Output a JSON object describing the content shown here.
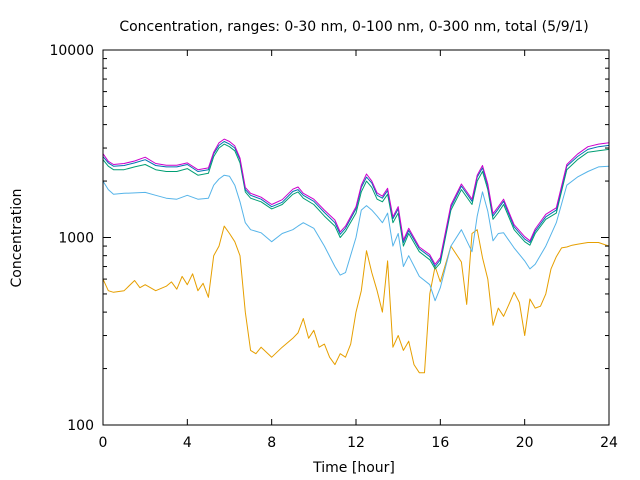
{
  "chart_data": {
    "type": "line",
    "title": "Concentration, ranges: 0-30 nm, 0-100 nm, 0-300 nm, total (5/9/1)",
    "xlabel": "Time [hour]",
    "ylabel": "Concentration",
    "xlim": [
      0,
      24
    ],
    "ylim": [
      100,
      10000
    ],
    "yscale": "log",
    "grid": false,
    "legend": "none",
    "xticks": [
      0,
      4,
      8,
      12,
      16,
      20,
      24
    ],
    "xtick_labels": [
      "0",
      "4",
      "8",
      "12",
      "16",
      "20",
      "24"
    ],
    "yticks": [
      100,
      1000,
      10000
    ],
    "ytick_labels": [
      "100",
      "1000",
      "10000"
    ],
    "series": [
      {
        "color": "#e69f00",
        "x": [
          0,
          0.25,
          0.5,
          1,
          1.5,
          1.75,
          2,
          2.5,
          3,
          3.25,
          3.5,
          3.75,
          4,
          4.25,
          4.5,
          4.75,
          5,
          5.25,
          5.5,
          5.75,
          6,
          6.25,
          6.5,
          6.75,
          7,
          7.25,
          7.5,
          8,
          8.5,
          9,
          9.25,
          9.5,
          9.75,
          10,
          10.25,
          10.5,
          10.75,
          11,
          11.25,
          11.5,
          11.75,
          12,
          12.25,
          12.5,
          12.75,
          13,
          13.25,
          13.5,
          13.75,
          14,
          14.25,
          14.5,
          14.75,
          15,
          15.25,
          15.5,
          15.75,
          16,
          16.5,
          17,
          17.25,
          17.5,
          17.75,
          18,
          18.25,
          18.5,
          18.75,
          19,
          19.25,
          19.5,
          19.75,
          20,
          20.25,
          20.5,
          20.75,
          21,
          21.25,
          21.5,
          21.75,
          22,
          22.25,
          22.5,
          23,
          23.5,
          24
        ],
        "y": [
          600,
          520,
          510,
          520,
          590,
          540,
          560,
          520,
          550,
          580,
          530,
          620,
          560,
          640,
          520,
          570,
          480,
          800,
          900,
          1150,
          1050,
          950,
          800,
          400,
          250,
          240,
          260,
          230,
          260,
          290,
          310,
          370,
          290,
          320,
          260,
          270,
          230,
          210,
          240,
          230,
          270,
          400,
          520,
          850,
          650,
          520,
          400,
          750,
          260,
          300,
          250,
          280,
          210,
          190,
          190,
          500,
          700,
          580,
          900,
          740,
          440,
          1050,
          1100,
          780,
          600,
          340,
          420,
          380,
          440,
          510,
          450,
          300,
          470,
          420,
          430,
          500,
          680,
          790,
          880,
          890,
          910,
          920,
          940,
          940,
          900
        ]
      },
      {
        "color": "#56b4e9",
        "x": [
          0,
          0.25,
          0.5,
          1,
          1.5,
          2,
          2.5,
          3,
          3.5,
          4,
          4.5,
          5,
          5.25,
          5.5,
          5.75,
          6,
          6.25,
          6.5,
          6.75,
          7,
          7.5,
          8,
          8.5,
          9,
          9.25,
          9.5,
          10,
          10.5,
          11,
          11.25,
          11.5,
          12,
          12.25,
          12.5,
          12.75,
          13,
          13.25,
          13.5,
          13.75,
          14,
          14.25,
          14.5,
          15,
          15.5,
          15.75,
          16,
          16.5,
          17,
          17.5,
          17.75,
          18,
          18.25,
          18.5,
          18.75,
          19,
          19.5,
          20,
          20.25,
          20.5,
          21,
          21.5,
          22,
          22.5,
          23,
          23.5,
          24
        ],
        "y": [
          2000,
          1800,
          1700,
          1720,
          1730,
          1740,
          1680,
          1620,
          1600,
          1680,
          1600,
          1620,
          1900,
          2050,
          2150,
          2120,
          1900,
          1550,
          1200,
          1100,
          1060,
          950,
          1050,
          1100,
          1150,
          1200,
          1120,
          900,
          700,
          630,
          650,
          1000,
          1400,
          1480,
          1400,
          1300,
          1200,
          1350,
          900,
          1050,
          700,
          800,
          620,
          560,
          460,
          540,
          900,
          1100,
          840,
          1300,
          1750,
          1380,
          960,
          1050,
          1060,
          880,
          750,
          680,
          720,
          900,
          1200,
          1900,
          2100,
          2250,
          2380,
          2400
        ]
      },
      {
        "color": "#009e73",
        "x": [
          0,
          0.25,
          0.5,
          1,
          1.5,
          2,
          2.5,
          3,
          3.5,
          4,
          4.5,
          5,
          5.25,
          5.5,
          5.75,
          6,
          6.25,
          6.5,
          6.75,
          7,
          7.5,
          8,
          8.5,
          9,
          9.25,
          9.5,
          10,
          10.5,
          11,
          11.25,
          11.5,
          12,
          12.25,
          12.5,
          12.75,
          13,
          13.25,
          13.5,
          13.75,
          14,
          14.25,
          14.5,
          15,
          15.5,
          15.75,
          16,
          16.5,
          17,
          17.5,
          17.75,
          18,
          18.25,
          18.5,
          18.75,
          19,
          19.5,
          20,
          20.25,
          20.5,
          21,
          21.5,
          22,
          22.5,
          23,
          23.5,
          24
        ],
        "y": [
          2600,
          2400,
          2300,
          2300,
          2380,
          2450,
          2300,
          2250,
          2250,
          2330,
          2150,
          2200,
          2700,
          3000,
          3150,
          3050,
          2900,
          2500,
          1750,
          1620,
          1550,
          1420,
          1500,
          1700,
          1750,
          1620,
          1500,
          1300,
          1150,
          1000,
          1080,
          1350,
          1750,
          2000,
          1850,
          1600,
          1550,
          1700,
          1200,
          1350,
          900,
          1050,
          840,
          760,
          680,
          730,
          1400,
          1800,
          1500,
          2000,
          2250,
          1800,
          1250,
          1360,
          1500,
          1100,
          950,
          910,
          1050,
          1250,
          1350,
          2300,
          2600,
          2850,
          2900,
          2950
        ]
      },
      {
        "color": "#0072b2",
        "x": [
          0,
          0.25,
          0.5,
          1,
          1.5,
          2,
          2.5,
          3,
          3.5,
          4,
          4.5,
          5,
          5.25,
          5.5,
          5.75,
          6,
          6.25,
          6.5,
          6.75,
          7,
          7.5,
          8,
          8.5,
          9,
          9.25,
          9.5,
          10,
          10.5,
          11,
          11.25,
          11.5,
          12,
          12.25,
          12.5,
          12.75,
          13,
          13.25,
          13.5,
          13.75,
          14,
          14.25,
          14.5,
          15,
          15.5,
          15.75,
          16,
          16.5,
          17,
          17.5,
          17.75,
          18,
          18.25,
          18.5,
          18.75,
          19,
          19.5,
          20,
          20.25,
          20.5,
          21,
          21.5,
          22,
          22.5,
          23,
          23.5,
          24
        ],
        "y": [
          2700,
          2500,
          2400,
          2420,
          2500,
          2600,
          2420,
          2380,
          2380,
          2450,
          2250,
          2300,
          2800,
          3100,
          3250,
          3150,
          3000,
          2600,
          1800,
          1680,
          1600,
          1460,
          1540,
          1760,
          1800,
          1680,
          1560,
          1360,
          1200,
          1040,
          1120,
          1420,
          1850,
          2100,
          1950,
          1680,
          1620,
          1780,
          1260,
          1420,
          940,
          1090,
          870,
          790,
          700,
          760,
          1450,
          1880,
          1560,
          2100,
          2350,
          1880,
          1300,
          1420,
          1560,
          1140,
          980,
          940,
          1080,
          1290,
          1400,
          2400,
          2700,
          2950,
          3050,
          3100
        ]
      },
      {
        "color": "#cc00cc",
        "x": [
          0,
          0.25,
          0.5,
          1,
          1.5,
          2,
          2.5,
          3,
          3.5,
          4,
          4.5,
          5,
          5.25,
          5.5,
          5.75,
          6,
          6.25,
          6.5,
          6.75,
          7,
          7.5,
          8,
          8.5,
          9,
          9.25,
          9.5,
          10,
          10.5,
          11,
          11.25,
          11.5,
          12,
          12.25,
          12.5,
          12.75,
          13,
          13.25,
          13.5,
          13.75,
          14,
          14.25,
          14.5,
          15,
          15.5,
          15.75,
          16,
          16.5,
          17,
          17.5,
          17.75,
          18,
          18.25,
          18.5,
          18.75,
          19,
          19.5,
          20,
          20.25,
          20.5,
          21,
          21.5,
          22,
          22.5,
          23,
          23.5,
          24
        ],
        "y": [
          2800,
          2550,
          2450,
          2480,
          2560,
          2680,
          2480,
          2430,
          2430,
          2500,
          2300,
          2350,
          2850,
          3200,
          3350,
          3250,
          3080,
          2650,
          1850,
          1720,
          1640,
          1500,
          1590,
          1810,
          1860,
          1720,
          1600,
          1400,
          1240,
          1070,
          1150,
          1460,
          1900,
          2180,
          2000,
          1730,
          1660,
          1830,
          1290,
          1460,
          970,
          1120,
          890,
          810,
          720,
          780,
          1490,
          1930,
          1600,
          2150,
          2420,
          1930,
          1340,
          1460,
          1600,
          1170,
          1010,
          960,
          1110,
          1330,
          1440,
          2450,
          2780,
          3050,
          3150,
          3200
        ]
      }
    ]
  }
}
